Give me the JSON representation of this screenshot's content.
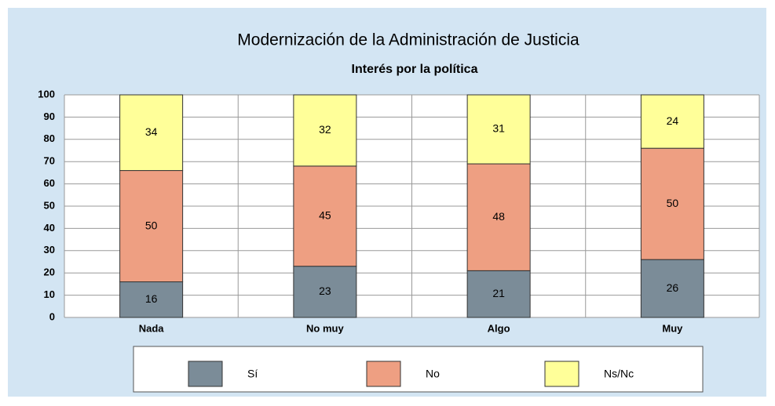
{
  "chart_data": {
    "type": "stacked_bar",
    "title": "Modernización de la Administración de Justicia",
    "subtitle": "Interés por la política",
    "categories": [
      "Nada",
      "No muy",
      "Algo",
      "Muy"
    ],
    "series": [
      {
        "name": "Sí",
        "color": "#7b8c98",
        "values": [
          16,
          23,
          21,
          26
        ]
      },
      {
        "name": "No",
        "color": "#ee9f82",
        "values": [
          50,
          45,
          48,
          50
        ]
      },
      {
        "name": "Ns/Nc",
        "color": "#ffff99",
        "values": [
          34,
          32,
          31,
          24
        ]
      }
    ],
    "ylim": [
      0,
      100
    ],
    "yticks": [
      0,
      10,
      20,
      30,
      40,
      50,
      60,
      70,
      80,
      90,
      100
    ],
    "grid": true
  }
}
